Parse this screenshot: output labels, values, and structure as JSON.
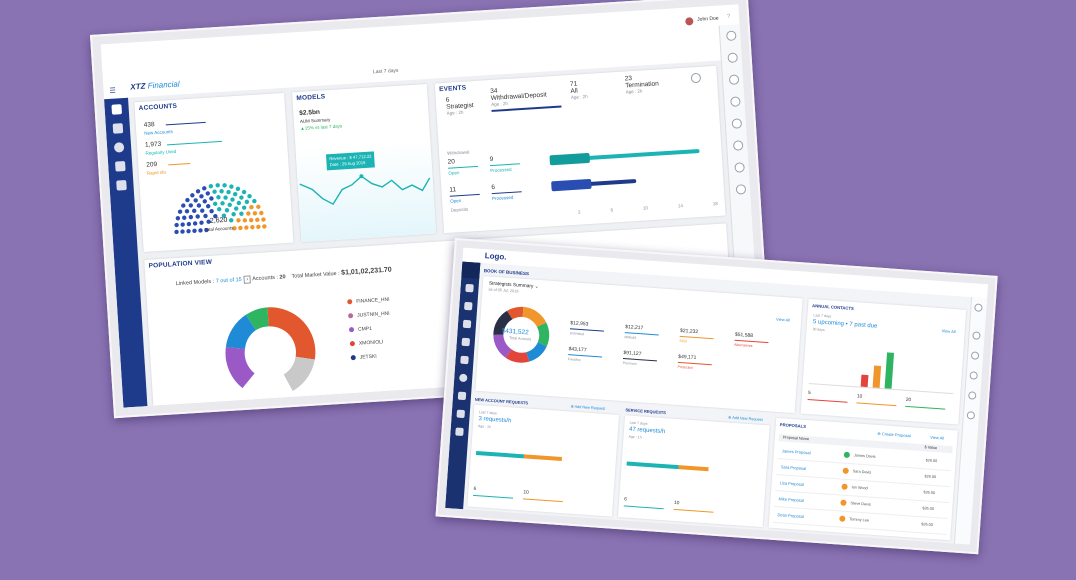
{
  "colors": {
    "background": "#8a73b3",
    "navy": "#1e3a8a",
    "blue": "#1f8ad6",
    "teal": "#1bb3b3",
    "orange": "#f0962a",
    "red": "#e2453c",
    "green": "#2fb561"
  },
  "top": {
    "user": "John Doe",
    "brand_main": "XTZ",
    "brand_sub": "Financial",
    "last_days": "Last 7 days",
    "accounts": {
      "title": "ACCOUNTS",
      "items": [
        {
          "value": "438",
          "label": "New Accounts"
        },
        {
          "value": "1,973",
          "label": "Regularly Used"
        },
        {
          "value": "209",
          "label": "Rapid sfa"
        }
      ],
      "total_value": "2,620",
      "total_label": "Total Accounts"
    },
    "models": {
      "title": "MODELS",
      "amount": "$2.5bn",
      "label": "AUM Summary",
      "change": "▲15% vs last 7 days",
      "tooltip_1": "Revenue : $ 47,712.22",
      "tooltip_2": "Date : 29 Aug 2019"
    },
    "events": {
      "title": "EVENTS",
      "cols": [
        {
          "num": "6",
          "name": "Strategist",
          "sub": "Age : 2h"
        },
        {
          "num": "34",
          "name": "Withdrawal/Deposit",
          "sub": "Age : 2h"
        },
        {
          "num": "71",
          "name": "All",
          "sub": "Age : 2h"
        },
        {
          "num": "23",
          "name": "Termination",
          "sub": "Age : 2h"
        }
      ],
      "withdrawal": "Withdrawal",
      "open1_val": "20",
      "open1": "Open",
      "proc1_val": "9",
      "proc1": "Processed",
      "open2_val": "11",
      "open2": "Open",
      "proc2_val": "6",
      "proc2": "Processed",
      "deposits": "Deposits",
      "ticks": [
        "2",
        "6",
        "10",
        "14",
        "18"
      ]
    },
    "population": {
      "title": "POPULATION VIEW",
      "linked": "Linked Models :",
      "linked_val": "7 out of 15",
      "accounts": "Accounts :",
      "accounts_val": "20",
      "market": "Total Market Value :",
      "market_val": "$1,01,02,231.70",
      "legend": [
        "FINANCE_HNI",
        "JUSTNIN_HNI",
        "CMP1",
        "XMON/OLI",
        "JETSKI"
      ]
    }
  },
  "bottom": {
    "logo": "Logo.",
    "book": "BOOK OF BUSINESS",
    "strategist": "Strategists Summary",
    "as_of": "as of 05 Jul, 2019",
    "view_all": "View All",
    "total_value": "$431,522",
    "total_label": "Total Amount",
    "values": [
      {
        "value": "$12,953",
        "label": "Unlimited"
      },
      {
        "value": "$12,217",
        "label": "MMod4"
      },
      {
        "value": "$21,232",
        "label": "Strat"
      },
      {
        "value": "$51,588",
        "label": "Alternatives"
      },
      {
        "value": "$43,177",
        "label": "Fixedinc"
      },
      {
        "value": "$91,127",
        "label": "Premium"
      },
      {
        "value": "$49,171",
        "label": "Protected"
      }
    ],
    "annual": {
      "title": "ANNUAL CONTACTS",
      "period": "Last 7 days",
      "text": "5 upcoming • 7 past due",
      "sub": "30 days",
      "nums": [
        "5",
        "10",
        "20"
      ]
    },
    "new_acc": {
      "title": "NEW ACCOUNT REQUESTS",
      "add": "Add New Request",
      "period": "Last 7 days",
      "rate": "3 requests/h",
      "age": "Age : 1h",
      "nums": [
        "6",
        "10"
      ]
    },
    "service": {
      "title": "SERVICE REQUESTS",
      "add": "Add New Request",
      "period": "Last 7 days",
      "rate": "47 requests/h",
      "age": "Age : 1h",
      "nums": [
        "6",
        "10"
      ]
    },
    "proposals": {
      "title": "PROPOSALS",
      "create": "Create Proposal",
      "view": "View All",
      "col1": "Proposal Name",
      "col2": "$ Value",
      "rows": [
        {
          "name": "James Proposal",
          "person": "James Davis",
          "value": "$26.00"
        },
        {
          "name": "Sara Proposal",
          "person": "Sara Davis",
          "value": "$26.00"
        },
        {
          "name": "Lisa Proposal",
          "person": "Ian Wood",
          "value": "$26.00"
        },
        {
          "name": "Mike Proposal",
          "person": "Steve Davis",
          "value": "$26.00"
        },
        {
          "name": "Dean Proposal",
          "person": "Tommy Lee",
          "value": "$26.00"
        }
      ]
    }
  }
}
